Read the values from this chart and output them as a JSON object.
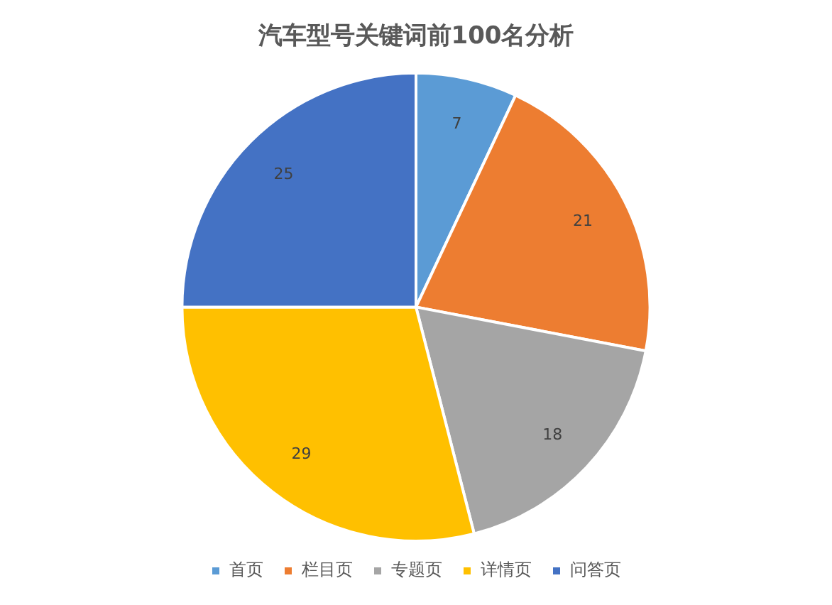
{
  "chart_data": {
    "type": "pie",
    "title": "汽车型号关键词前100名分析",
    "categories": [
      "首页",
      "栏目页",
      "专题页",
      "详情页",
      "问答页"
    ],
    "values": [
      7,
      21,
      18,
      29,
      25
    ],
    "colors": [
      "#5b9bd5",
      "#ed7d31",
      "#a5a5a5",
      "#ffc000",
      "#4472c4"
    ],
    "data_labels": true,
    "legend": "bottom"
  }
}
